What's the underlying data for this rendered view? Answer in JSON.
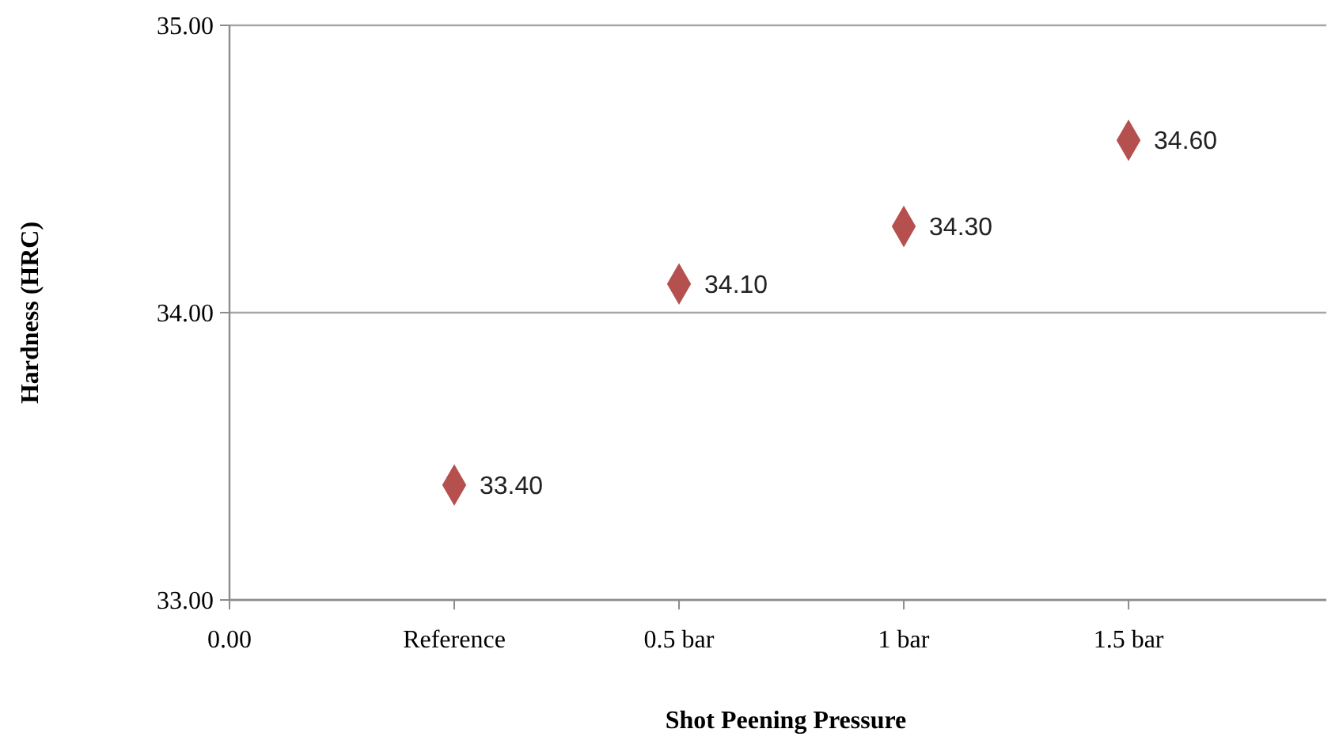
{
  "chart_data": {
    "type": "scatter",
    "xlabel": "Shot Peening Pressure",
    "ylabel": "Hardness (HRC)",
    "categories": [
      "0.00",
      "Reference",
      "0.5 bar",
      "1 bar",
      "1.5 bar"
    ],
    "values": [
      null,
      33.4,
      34.1,
      34.3,
      34.6
    ],
    "value_labels": [
      null,
      "33.40",
      "34.10",
      "34.30",
      "34.60"
    ],
    "color": "#b5504e",
    "marker": "diamond",
    "ylim": [
      33,
      35
    ],
    "yticks": [
      {
        "value": 33,
        "label": "33.00"
      },
      {
        "value": 34,
        "label": "34.00"
      },
      {
        "value": 35,
        "label": "35.00"
      }
    ],
    "grid": "y"
  }
}
